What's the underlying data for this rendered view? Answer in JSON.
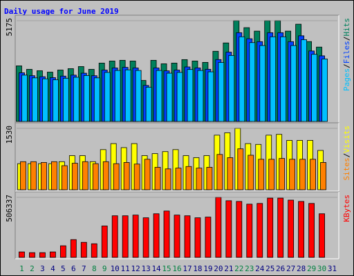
{
  "chart_data": {
    "type": "bar",
    "title": "Daily usage for June 2019",
    "categories": [
      1,
      2,
      3,
      4,
      5,
      6,
      7,
      8,
      9,
      10,
      11,
      12,
      13,
      14,
      15,
      16,
      17,
      18,
      19,
      20,
      21,
      22,
      23,
      24,
      25,
      26,
      27,
      28,
      29,
      30,
      31
    ],
    "category_colors": [
      "#008040",
      "#008040",
      "#000080",
      "#000080",
      "#000080",
      "#000080",
      "#000080",
      "#008040",
      "#008040",
      "#000080",
      "#000080",
      "#000080",
      "#000080",
      "#000080",
      "#008040",
      "#008040",
      "#000080",
      "#000080",
      "#000080",
      "#000080",
      "#000080",
      "#008040",
      "#008040",
      "#000080",
      "#000080",
      "#000080",
      "#000080",
      "#000080",
      "#008040",
      "#008040",
      "#000080"
    ],
    "legend_separator": "/",
    "panels": [
      {
        "ylim": [
          0,
          5175
        ],
        "yticks": [
          5175
        ],
        "series": [
          {
            "name": "Hits",
            "color": "#00805c",
            "values": [
              2855,
              2677,
              2605,
              2534,
              2641,
              2712,
              2820,
              2677,
              2998,
              3105,
              3141,
              3105,
              2106,
              3141,
              2962,
              2998,
              3177,
              3105,
              3034,
              3605,
              4033,
              5175,
              4818,
              4640,
              5175,
              5175,
              4640,
              4996,
              4104,
              3820,
              null
            ]
          },
          {
            "name": "Files",
            "color": "#0040ff",
            "values": [
              2500,
              2350,
              2300,
              2250,
              2330,
              2380,
              2480,
              2350,
              2640,
              2750,
              2780,
              2750,
              1850,
              2750,
              2600,
              2640,
              2800,
              2750,
              2680,
              3180,
              3560,
              4560,
              4250,
              4100,
              4560,
              4560,
              4100,
              4400,
              3620,
              3370,
              null
            ]
          },
          {
            "name": "Pages",
            "color": "#00c0ff",
            "values": [
              2380,
              2240,
              2190,
              2140,
              2220,
              2270,
              2360,
              2240,
              2520,
              2620,
              2650,
              2620,
              1760,
              2620,
              2480,
              2520,
              2670,
              2620,
              2550,
              3030,
              3390,
              4350,
              4050,
              3900,
              4350,
              4350,
              3900,
              4200,
              3450,
              3210,
              null
            ]
          }
        ]
      },
      {
        "ylim": [
          0,
          1530
        ],
        "yticks": [
          1530
        ],
        "series": [
          {
            "name": "Visits",
            "color": "#ffff00",
            "values": [
              650,
              650,
              650,
              650,
              700,
              850,
              850,
              700,
              1000,
              1150,
              1050,
              1150,
              850,
              900,
              950,
              1000,
              850,
              800,
              850,
              1360,
              1420,
              1530,
              1150,
              1130,
              1360,
              1380,
              1230,
              1230,
              1230,
              980,
              null
            ]
          },
          {
            "name": "Sites",
            "color": "#ff8000",
            "values": [
              700,
              700,
              680,
              700,
              600,
              660,
              700,
              650,
              700,
              650,
              680,
              640,
              760,
              560,
              520,
              540,
              580,
              540,
              560,
              880,
              800,
              1020,
              860,
              760,
              760,
              780,
              760,
              760,
              760,
              680,
              null
            ]
          }
        ]
      },
      {
        "ylim": [
          0,
          506337
        ],
        "yticks": [
          506337
        ],
        "series": [
          {
            "name": "KBytes",
            "color": "#ff0000",
            "values": [
              46000,
              40000,
              40000,
              46000,
              98000,
              150000,
              127000,
              115000,
              265000,
              351000,
              351000,
              357000,
              334000,
              368000,
              391000,
              357000,
              351000,
              334000,
              340000,
              506337,
              478000,
              472000,
              449000,
              455000,
              500000,
              500000,
              483000,
              472000,
              455000,
              368000,
              null
            ]
          }
        ]
      }
    ]
  }
}
